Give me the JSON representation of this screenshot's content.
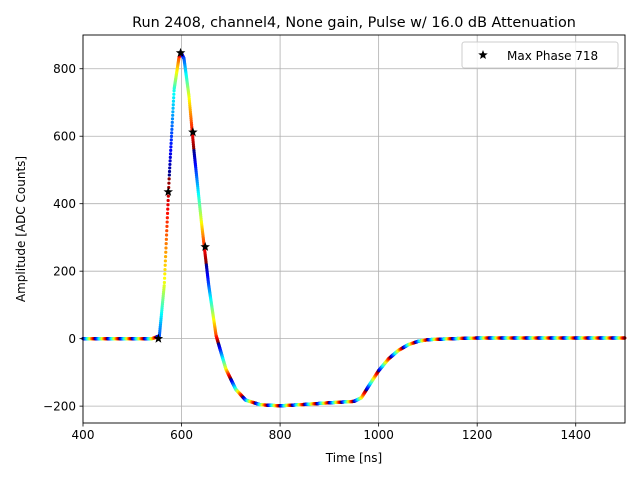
{
  "chart_data": {
    "type": "scatter",
    "title": "Run 2408, channel4, None gain, Pulse w/ 16.0 dB Attenuation",
    "xlabel": "Time [ns]",
    "ylabel": "Amplitude [ADC Counts]",
    "xlim": [
      400,
      1500
    ],
    "ylim": [
      -250,
      900
    ],
    "xticks": [
      400,
      600,
      800,
      1000,
      1200,
      1400
    ],
    "xtick_labels": [
      "400",
      "600",
      "800",
      "1000",
      "1200",
      "1400"
    ],
    "yticks": [
      -200,
      0,
      200,
      400,
      600,
      800
    ],
    "ytick_labels": [
      "−200",
      "0",
      "200",
      "400",
      "600",
      "800"
    ],
    "grid": true,
    "legend_position": "top-right",
    "colormap": "jet (color cycles with sample phase)",
    "waveform_samples": {
      "x": [
        400,
        540,
        555,
        565,
        575,
        585,
        595,
        600,
        605,
        615,
        625,
        640,
        655,
        670,
        690,
        710,
        730,
        760,
        800,
        850,
        900,
        950,
        965,
        980,
        1000,
        1020,
        1040,
        1060,
        1080,
        1100,
        1150,
        1200,
        1300,
        1400,
        1500
      ],
      "y": [
        0,
        0,
        8,
        160,
        480,
        740,
        835,
        845,
        830,
        720,
        560,
        350,
        160,
        10,
        -90,
        -150,
        -182,
        -196,
        -199,
        -195,
        -190,
        -186,
        -175,
        -140,
        -95,
        -60,
        -35,
        -18,
        -8,
        -3,
        0,
        2,
        2,
        2,
        2
      ]
    },
    "series": [
      {
        "name": "Max Phase 718",
        "marker": "star",
        "color": "#000000",
        "x": [
          553,
          573,
          598,
          623,
          648
        ],
        "y": [
          0,
          435,
          847,
          612,
          272
        ]
      }
    ]
  }
}
